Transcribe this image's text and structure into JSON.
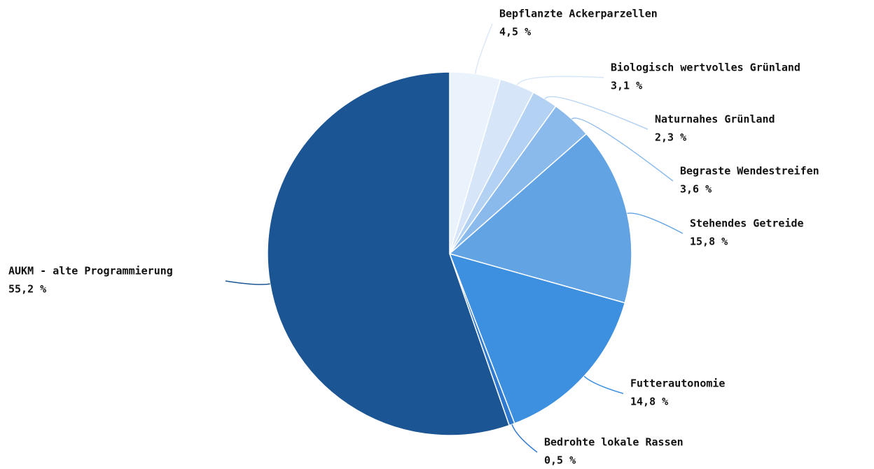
{
  "chart_data": {
    "type": "pie",
    "categories": [
      "Bepflanzte Ackerparzellen",
      "Biologisch wertvolles Grünland",
      "Naturnahes Grünland",
      "Begraste Wendestreifen",
      "Stehendes Getreide",
      "Futterautonomie",
      "Bedrohte lokale Rassen",
      "AUKM - alte Programmierung"
    ],
    "values": [
      4.5,
      3.1,
      2.3,
      3.6,
      15.8,
      14.8,
      0.5,
      55.2
    ],
    "value_labels": [
      "4,5 %",
      "3,1 %",
      "2,3 %",
      "3,6 %",
      "15,8 %",
      "14,8 %",
      "0,5 %",
      "55,2 %"
    ],
    "colors": [
      "#eaf2fb",
      "#d6e6f8",
      "#b3d2f3",
      "#8ab9ec",
      "#62a3e3",
      "#3d8fdf",
      "#2f7ad0",
      "#1c5593"
    ]
  }
}
